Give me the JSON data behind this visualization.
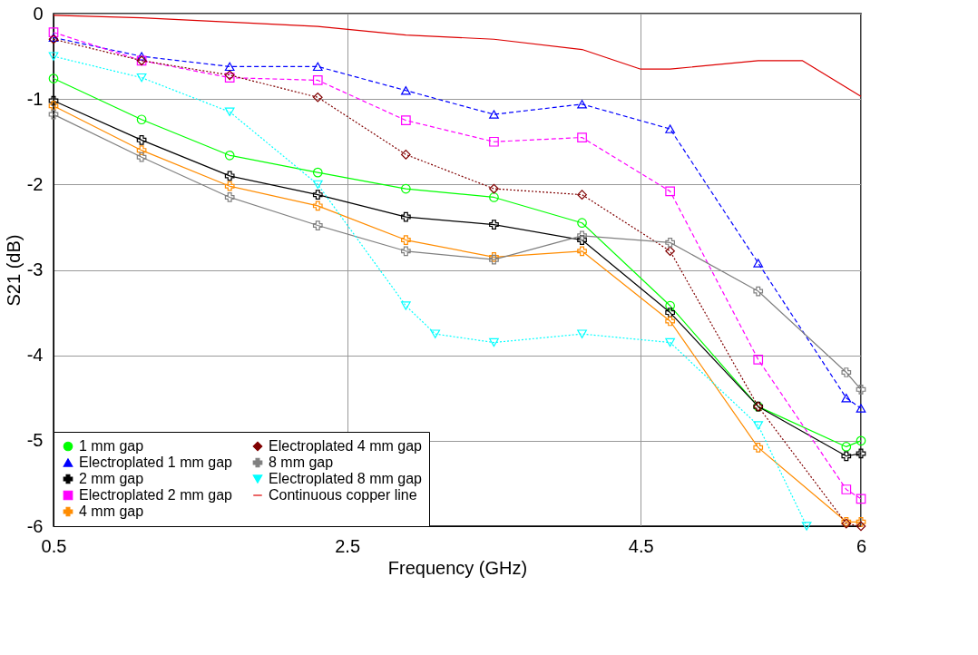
{
  "chart_data": {
    "type": "line",
    "xlabel": "Frequency (GHz)",
    "ylabel": "S21 (dB)",
    "x": [
      0.5,
      1.1,
      1.7,
      2.3,
      2.9,
      3.5,
      4.1,
      4.7,
      5.3,
      5.9,
      6.0
    ],
    "xlim": [
      0.5,
      6
    ],
    "xticks": [
      {
        "value": 0.5,
        "label": "0.5"
      },
      {
        "value": 2.5,
        "label": "2.5"
      },
      {
        "value": 4.5,
        "label": "4.5"
      },
      6
    ],
    "ylim": [
      -6,
      0
    ],
    "yticks": [
      -6,
      -5,
      -4,
      -3,
      -2,
      -1,
      0
    ],
    "grid": true,
    "legend": "bottom left",
    "series": [
      {
        "name": "1 mm gap",
        "color": "#00ff00",
        "marker": "circle",
        "line_style": "solid",
        "values": [
          -0.76,
          -1.24,
          -1.66,
          -1.86,
          -2.05,
          -2.15,
          -2.45,
          -3.42,
          -4.6,
          -5.07,
          -5.0
        ]
      },
      {
        "name": "Electroplated 1 mm gap",
        "color": "#0000ff",
        "marker": "triangle",
        "line_style": "dashed",
        "values": [
          -0.28,
          -0.5,
          -0.62,
          -0.62,
          -0.9,
          -1.18,
          -1.06,
          -1.35,
          -2.92,
          -4.5,
          -4.62
        ]
      },
      {
        "name": "2 mm gap",
        "color": "#000000",
        "marker": "cross",
        "line_style": "solid",
        "values": [
          -1.02,
          -1.48,
          -1.9,
          -2.12,
          -2.38,
          -2.47,
          -2.65,
          -3.5,
          -4.6,
          -5.18,
          -5.15
        ]
      },
      {
        "name": "Electroplated 2 mm gap",
        "color": "#ff00ff",
        "marker": "square",
        "line_style": "dashed",
        "values": [
          -0.22,
          -0.55,
          -0.75,
          -0.78,
          -1.25,
          -1.5,
          -1.45,
          -2.08,
          -4.05,
          -5.57,
          -5.68
        ]
      },
      {
        "name": "4 mm gap",
        "color": "#ff8c00",
        "marker": "cross",
        "line_style": "solid",
        "values": [
          -1.08,
          -1.6,
          -2.02,
          -2.25,
          -2.65,
          -2.85,
          -2.78,
          -3.6,
          -5.08,
          -5.95,
          -5.95
        ]
      },
      {
        "name": "Electroplated 4 mm gap",
        "color": "#800000",
        "marker": "diamond",
        "line_style": "dotted",
        "values": [
          -0.3,
          -0.55,
          -0.72,
          -0.98,
          -1.65,
          -2.05,
          -2.12,
          -2.78,
          -4.6,
          -5.97,
          -6.0
        ]
      },
      {
        "name": "8 mm gap",
        "color": "#808080",
        "marker": "cross",
        "line_style": "solid",
        "values": [
          -1.18,
          -1.68,
          -2.15,
          -2.48,
          -2.78,
          -2.88,
          -2.6,
          -2.68,
          -3.25,
          -4.2,
          -4.4
        ]
      },
      {
        "name": "Electroplated 8 mm gap",
        "color": "#00ffff",
        "marker": "triangle",
        "line_style": "dotted",
        "x": [
          0.5,
          1.1,
          1.7,
          2.3,
          2.9,
          3.1,
          3.5,
          4.1,
          4.7,
          5.3,
          5.63
        ],
        "values": [
          -0.5,
          -0.75,
          -1.15,
          -2.0,
          -3.42,
          -3.75,
          -3.85,
          -3.75,
          -3.85,
          -4.82,
          -6.0
        ]
      },
      {
        "name": "Continuous copper line",
        "color": "#dd0000",
        "marker": "none",
        "line_style": "solid",
        "x": [
          0.5,
          1.1,
          1.7,
          2.3,
          2.9,
          3.5,
          4.1,
          4.5,
          4.7,
          5.3,
          5.6,
          6.0
        ],
        "values": [
          -0.02,
          -0.05,
          -0.1,
          -0.15,
          -0.25,
          -0.3,
          -0.42,
          -0.65,
          -0.65,
          -0.55,
          -0.55,
          -0.97
        ]
      }
    ]
  }
}
